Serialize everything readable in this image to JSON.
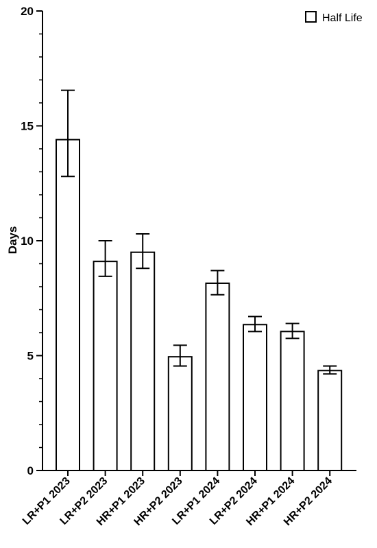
{
  "chart_data": {
    "type": "bar",
    "categories": [
      "LR+P1 2023",
      "LR+P2 2023",
      "HR+P1 2023",
      "HR+P2 2023",
      "LR+P1 2024",
      "LR+P2 2024",
      "HR+P1 2024",
      "HR+P2 2024"
    ],
    "series": [
      {
        "name": "Half Life",
        "values": [
          14.4,
          9.1,
          9.5,
          4.95,
          8.15,
          6.35,
          6.05,
          4.35
        ],
        "error_low": [
          12.8,
          8.45,
          8.8,
          4.55,
          7.65,
          6.05,
          5.75,
          4.2
        ],
        "error_high": [
          16.55,
          10.0,
          10.3,
          5.45,
          8.7,
          6.7,
          6.4,
          4.55
        ]
      }
    ],
    "ylabel": "Days",
    "xlabel": "",
    "ylim": [
      0,
      20
    ],
    "yticks": [
      0,
      5,
      10,
      15,
      20
    ],
    "ytick_labels": [
      "0",
      "5",
      "10",
      "15",
      "20"
    ],
    "minor_ticks_per_major": 5,
    "legend": {
      "position": "top-right",
      "entries": [
        "Half Life"
      ]
    },
    "colors": {
      "bar_fill": "#ffffff",
      "bar_stroke": "#000000",
      "axis": "#000000"
    },
    "grid": false
  }
}
